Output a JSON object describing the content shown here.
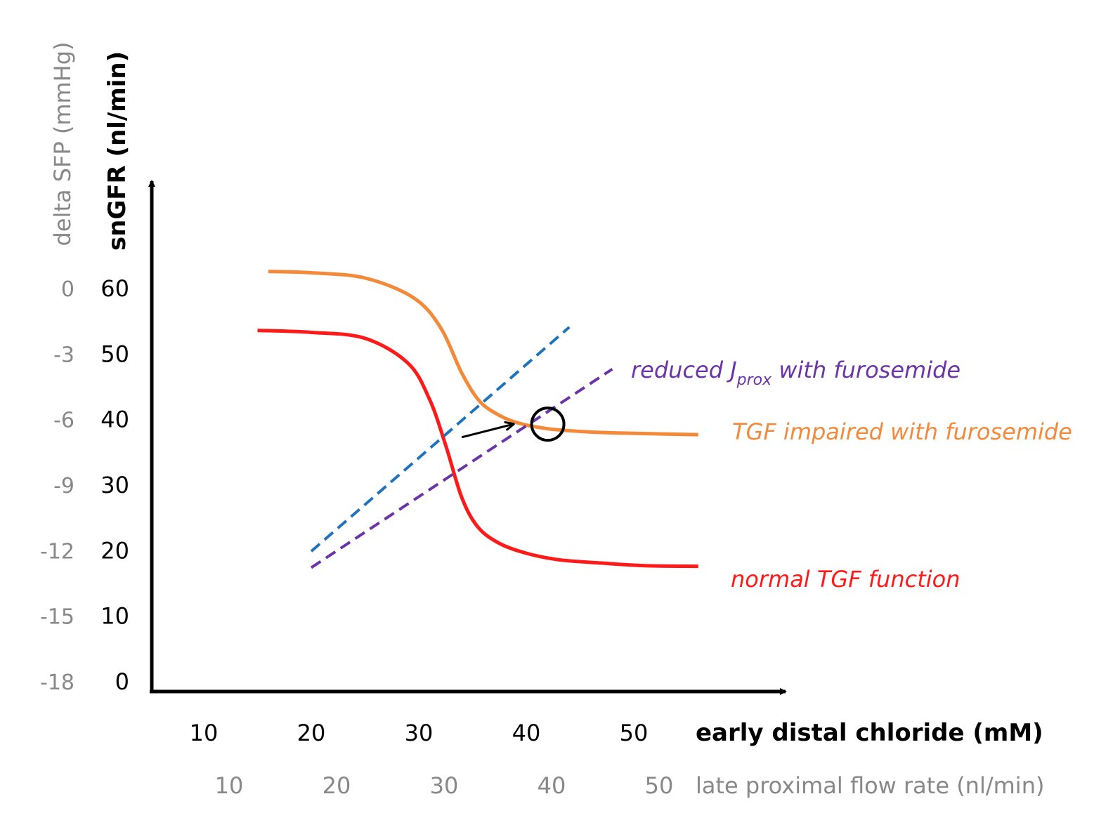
{
  "chart_data": {
    "type": "line",
    "title": "",
    "xlabel": "early distal chloride (mM)",
    "xlabel_secondary": "late proximal flow rate (nl/min)",
    "ylabel": "snGFR (nl/min)",
    "ylabel_secondary": "delta SFP (mmHg)",
    "xlim": [
      10,
      50
    ],
    "ylim": [
      0,
      60
    ],
    "x_ticks": [
      "10",
      "20",
      "30",
      "40",
      "50"
    ],
    "x_ticks_secondary": [
      "10",
      "20",
      "30",
      "40",
      "50"
    ],
    "y_ticks": [
      "0",
      "10",
      "20",
      "30",
      "40",
      "50",
      "60"
    ],
    "y_ticks_secondary": [
      "-18",
      "-15",
      "-12",
      "-9",
      "-6",
      "-3",
      "0"
    ],
    "grid": false,
    "series": [
      {
        "name": "normal TGF function",
        "color": "#ff1a1a",
        "style": "solid",
        "points": [
          [
            15,
            53.5
          ],
          [
            20,
            53.2
          ],
          [
            25,
            52.3
          ],
          [
            29,
            48.5
          ],
          [
            31,
            43
          ],
          [
            32.5,
            36
          ],
          [
            34,
            28
          ],
          [
            35.5,
            23.5
          ],
          [
            37.5,
            21
          ],
          [
            40,
            19.5
          ],
          [
            43,
            18.5
          ],
          [
            47,
            18
          ],
          [
            51,
            17.6
          ],
          [
            56,
            17.5
          ]
        ]
      },
      {
        "name": "TGF impaired with furosemide",
        "color": "#f28a3a",
        "style": "solid",
        "points": [
          [
            16,
            62.5
          ],
          [
            20,
            62.3
          ],
          [
            25,
            61.5
          ],
          [
            29.5,
            58.5
          ],
          [
            32,
            54
          ],
          [
            34,
            47
          ],
          [
            35.5,
            43
          ],
          [
            37,
            41
          ],
          [
            39,
            39.5
          ],
          [
            42,
            38.5
          ],
          [
            46,
            38.0
          ],
          [
            50,
            37.8
          ],
          [
            56,
            37.6
          ]
        ]
      },
      {
        "name": "reduced Jprox with furosemide",
        "color": "#6b35a8",
        "style": "dashed",
        "points": [
          [
            20,
            17.3
          ],
          [
            48,
            47.6
          ]
        ]
      },
      {
        "name": "",
        "color": "#1f73bd",
        "style": "dashed",
        "points": [
          [
            20,
            19.8
          ],
          [
            44,
            54.0
          ]
        ]
      }
    ],
    "annotations": [
      {
        "type": "arrow",
        "from": [
          34,
          37.2
        ],
        "to": [
          38.8,
          39.2
        ],
        "color": "#000000"
      },
      {
        "type": "circle",
        "center": [
          42,
          39.2
        ],
        "color": "#000000"
      }
    ]
  },
  "labels": {
    "normal": "normal TGF function",
    "impaired": "TGF impaired with furosemide",
    "reduced_pre": "reduced J",
    "reduced_sub": "prox",
    "reduced_post": " with furosemide"
  },
  "colors": {
    "axis": "#000000",
    "secondary_text": "#888888"
  }
}
